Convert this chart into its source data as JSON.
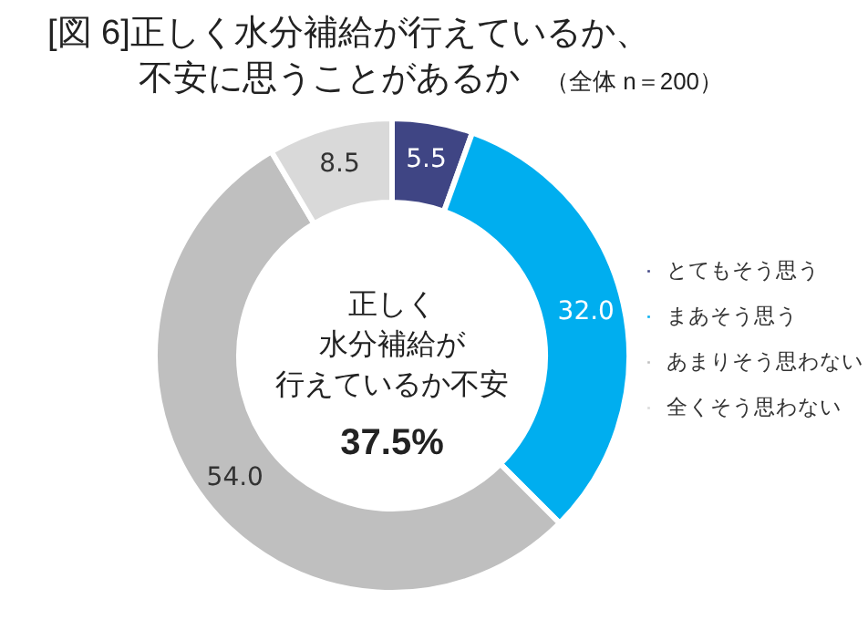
{
  "chart_data": {
    "type": "donut",
    "title": "[図 6]正しく水分補給が行えているか、不安に思うことがあるか",
    "subtitle": "（全体 n＝200）",
    "categories": [
      "とてもそう思う",
      "まあそう思う",
      "あまりそう思わない",
      "全くそう思わない"
    ],
    "values": [
      5.5,
      32.0,
      54.0,
      8.5
    ],
    "colors": [
      "#3f4584",
      "#00aeef",
      "#bfbfbf",
      "#d9d9d9"
    ],
    "value_labels": [
      "5.5",
      "32.0",
      "54.0",
      "8.5"
    ],
    "annotations": [
      "正しく",
      "水分補給が",
      "行えているか不安",
      "37.5%"
    ],
    "legend": "right"
  }
}
